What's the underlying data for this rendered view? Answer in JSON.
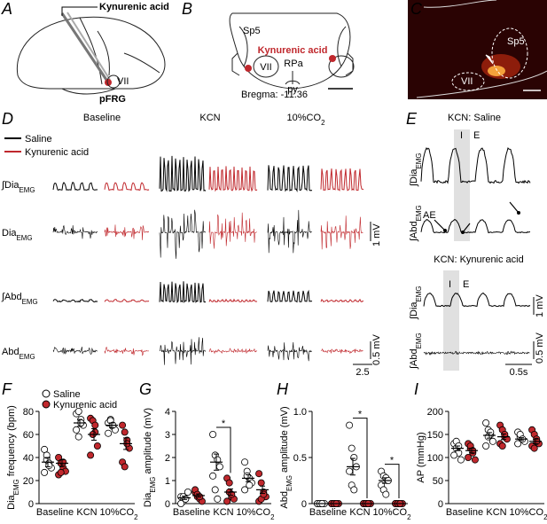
{
  "panel_labels": [
    "A",
    "B",
    "C",
    "D",
    "E",
    "F",
    "G",
    "H",
    "I"
  ],
  "A": {
    "injection": "Kynurenic acid",
    "nucleus": "VII",
    "region": "pFRG"
  },
  "B": {
    "sp5": "Sp5",
    "injection": "Kynurenic acid",
    "nucleus": "VII",
    "rpa": "RPa",
    "py": "py",
    "bregma": "Bregma: -11.36"
  },
  "C": {
    "sp5": "Sp5",
    "nucleus": "VII"
  },
  "D": {
    "conditions": [
      "Baseline",
      "KCN",
      {
        "pre": "10%CO",
        "sub": "2"
      }
    ],
    "legend": [
      "Saline",
      "Kynurenic acid"
    ],
    "rows": [
      {
        "pre": "∫Dia",
        "sub": "EMG"
      },
      {
        "pre": "Dia",
        "sub": "EMG"
      },
      {
        "pre": "∫Abd",
        "sub": "EMG"
      },
      {
        "pre": "Abd",
        "sub": "EMG"
      }
    ],
    "scale_dia": "1 mV",
    "scale_abd": "0.5 mV",
    "scale_time": "2.5"
  },
  "E": {
    "title_saline": "KCN: Saline",
    "title_kyn": "KCN: Kynurenic acid",
    "phase_i": "I",
    "phase_e": "E",
    "ae": "AE",
    "rows": [
      {
        "pre": "∫Dia",
        "sub": "EMG"
      },
      {
        "pre": "∫Abd",
        "sub": "EMG"
      }
    ],
    "scale_dia": "1 mV",
    "scale_abd": "0.5 mV",
    "scale_time": "0.5s"
  },
  "chart_data": [
    {
      "type": "dot",
      "ylabel": {
        "pre": "Dia",
        "sub": "EMG",
        "post": " frequency (bpm)"
      },
      "categories": [
        "Baseline",
        "KCN",
        {
          "pre": "10%CO",
          "sub": "2"
        }
      ],
      "ylim": [
        0,
        80
      ],
      "yticks": [
        0,
        20,
        40,
        60,
        80
      ],
      "legend": "top-left",
      "series": [
        {
          "name": "Saline",
          "color": "#ffffff",
          "values": [
            [
              47,
              38,
              35,
              31,
              27,
              42,
              33
            ],
            [
              78,
              80,
              73,
              68,
              64,
              58,
              70
            ],
            [
              70,
              73,
              67,
              64,
              61,
              72,
              68
            ]
          ],
          "mean": [
            36,
            70,
            68
          ],
          "sem": [
            4,
            3,
            2
          ]
        },
        {
          "name": "Kynurenic acid",
          "color": "#c0282d",
          "values": [
            [
              40,
              35,
              31,
              28,
              25,
              27,
              36
            ],
            [
              74,
              72,
              62,
              50,
              42,
              60,
              68
            ],
            [
              68,
              62,
              55,
              48,
              36,
              32,
              52
            ]
          ],
          "mean": [
            35,
            60,
            52
          ],
          "sem": [
            3,
            5,
            5
          ]
        }
      ],
      "annotations": []
    },
    {
      "type": "dot",
      "ylabel": {
        "pre": "Dia",
        "sub": "EMG",
        "post": " amplitude (mV)"
      },
      "categories": [
        "Baseline",
        "KCN",
        {
          "pre": "10%CO",
          "sub": "2"
        }
      ],
      "ylim": [
        0,
        4
      ],
      "yticks": [
        0,
        1,
        2,
        3,
        4
      ],
      "series": [
        {
          "color": "#ffffff",
          "values": [
            [
              0.3,
              0.1,
              0.2,
              0.5,
              0.0,
              0.3,
              0.2
            ],
            [
              3.0,
              2.1,
              1.9,
              1.6,
              1.2,
              0.6,
              0.2
            ],
            [
              1.8,
              1.4,
              1.1,
              0.9,
              0.6,
              1.2,
              0.8
            ]
          ],
          "mean": [
            0.25,
            1.8,
            1.1
          ],
          "sem": [
            0.07,
            0.35,
            0.15
          ]
        },
        {
          "color": "#c0282d",
          "values": [
            [
              0.5,
              0.3,
              0.2,
              0.1,
              0.6,
              0.4,
              0.3
            ],
            [
              1.1,
              0.5,
              0.3,
              0.2,
              0.1,
              0.9,
              0.4
            ],
            [
              1.3,
              0.9,
              0.5,
              0.3,
              0.1,
              0.2,
              0.4
            ]
          ],
          "mean": [
            0.35,
            0.5,
            0.6
          ],
          "sem": [
            0.07,
            0.14,
            0.16
          ]
        }
      ],
      "annotations": [
        {
          "text": "*",
          "category": 1
        }
      ]
    },
    {
      "type": "dot",
      "ylabel": {
        "pre": "Abd",
        "sub": "EMG",
        "post": " amplitude (mV)"
      },
      "categories": [
        "Baseline",
        "KCN",
        {
          "pre": "10%CO",
          "sub": "2"
        }
      ],
      "ylim": [
        0,
        1
      ],
      "yticks": [
        0,
        0.5,
        {
          "value": 1,
          "label": "1.0"
        }
      ],
      "series": [
        {
          "color": "#ffffff",
          "values": [
            [
              0,
              0,
              0,
              0,
              0,
              0,
              0
            ],
            [
              0.85,
              0.6,
              0.5,
              0.4,
              0.35,
              0.2,
              0.15
            ],
            [
              0.35,
              0.3,
              0.28,
              0.25,
              0.2,
              0.15,
              0.1
            ]
          ],
          "mean": [
            0,
            0.4,
            0.25
          ],
          "sem": [
            0,
            0.09,
            0.03
          ]
        },
        {
          "color": "#c0282d",
          "values": [
            [
              0,
              0,
              0,
              0,
              0,
              0,
              0
            ],
            [
              0,
              0,
              0,
              0,
              0,
              0,
              0
            ],
            [
              0,
              0,
              0,
              0,
              0,
              0,
              0
            ]
          ],
          "mean": [
            0,
            0,
            0
          ],
          "sem": [
            0,
            0,
            0
          ]
        }
      ],
      "annotations": [
        {
          "text": "*",
          "category": 1
        },
        {
          "text": "*",
          "category": 2
        }
      ]
    },
    {
      "type": "dot",
      "ylabel": "AP (mmHg)",
      "categories": [
        "Baseline",
        "KCN",
        {
          "pre": "10%CO",
          "sub": "2"
        }
      ],
      "ylim": [
        0,
        200
      ],
      "yticks": [
        0,
        50,
        100,
        150,
        200
      ],
      "series": [
        {
          "color": "#ffffff",
          "values": [
            [
              130,
              120,
              110,
              95,
              105,
              135,
              125
            ],
            [
              175,
              160,
              150,
              135,
              125,
              145,
              155
            ],
            [
              155,
              145,
              140,
              135,
              130,
              150,
              140
            ]
          ],
          "mean": [
            120,
            148,
            140
          ],
          "sem": [
            5,
            6,
            3
          ]
        },
        {
          "color": "#c0282d",
          "values": [
            [
              130,
              120,
              110,
              95,
              100,
              125,
              115
            ],
            [
              170,
              160,
              145,
              140,
              130,
              125,
              150
            ],
            [
              160,
              150,
              140,
              130,
              125,
              120,
              135
            ]
          ],
          "mean": [
            115,
            145,
            135
          ],
          "sem": [
            5,
            6,
            5
          ]
        }
      ],
      "annotations": []
    }
  ]
}
